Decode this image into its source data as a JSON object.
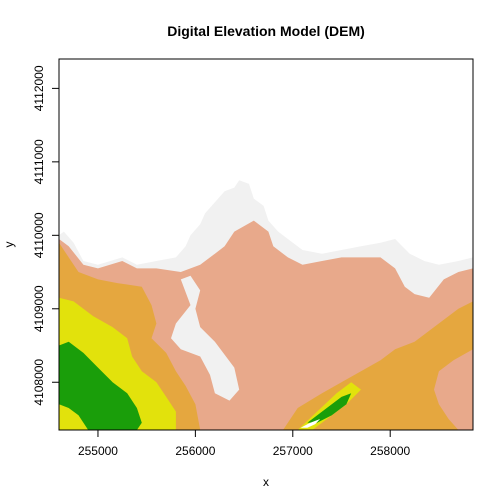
{
  "chart_data": {
    "type": "heatmap",
    "title": "Digital Elevation Model (DEM)",
    "xlabel": "x",
    "ylabel": "y",
    "xlim": [
      254600,
      258850
    ],
    "ylim": [
      4107350,
      4112400
    ],
    "x_ticks": [
      255000,
      256000,
      257000,
      258000
    ],
    "x_tick_labels": [
      "255000",
      "256000",
      "257000",
      "258000"
    ],
    "y_ticks": [
      4108000,
      4109000,
      4110000,
      4111000,
      4112000
    ],
    "y_tick_labels": [
      "4108000",
      "4109000",
      "4110000",
      "4111000",
      "4112000"
    ],
    "legend": "none",
    "grid": false,
    "colors": {
      "no_data": "#ffffff",
      "class_1": "#1a9e0a",
      "class_2": "#e2e20c",
      "class_3": "#e5a73f",
      "class_4": "#e8a98b",
      "class_5": "#f1f1f1",
      "frame": "#000000"
    },
    "regions": [
      {
        "name": "class_5",
        "polygon": [
          [
            254600,
            4110000
          ],
          [
            254650,
            4110050
          ],
          [
            254750,
            4109900
          ],
          [
            254850,
            4109650
          ],
          [
            255000,
            4109600
          ],
          [
            255250,
            4109700
          ],
          [
            255400,
            4109600
          ],
          [
            255600,
            4109650
          ],
          [
            255800,
            4109700
          ],
          [
            255900,
            4109850
          ],
          [
            255950,
            4110000
          ],
          [
            256050,
            4110150
          ],
          [
            256100,
            4110300
          ],
          [
            256200,
            4110450
          ],
          [
            256300,
            4110600
          ],
          [
            256400,
            4110650
          ],
          [
            256450,
            4110750
          ],
          [
            256550,
            4110700
          ],
          [
            256600,
            4110500
          ],
          [
            256700,
            4110400
          ],
          [
            256750,
            4110200
          ],
          [
            256850,
            4110050
          ],
          [
            256950,
            4109950
          ],
          [
            257100,
            4109800
          ],
          [
            257300,
            4109750
          ],
          [
            257500,
            4109800
          ],
          [
            257700,
            4109850
          ],
          [
            257900,
            4109900
          ],
          [
            258050,
            4109950
          ],
          [
            258200,
            4109750
          ],
          [
            258350,
            4109650
          ],
          [
            258500,
            4109600
          ],
          [
            258700,
            4109650
          ],
          [
            258850,
            4109700
          ],
          [
            258850,
            4107350
          ],
          [
            254600,
            4107350
          ]
        ]
      },
      {
        "name": "class_4",
        "polygon": [
          [
            254600,
            4109950
          ],
          [
            254700,
            4109850
          ],
          [
            254850,
            4109600
          ],
          [
            255000,
            4109550
          ],
          [
            255250,
            4109650
          ],
          [
            255400,
            4109550
          ],
          [
            255600,
            4109550
          ],
          [
            255850,
            4109500
          ],
          [
            256050,
            4109600
          ],
          [
            256200,
            4109750
          ],
          [
            256300,
            4109850
          ],
          [
            256400,
            4110050
          ],
          [
            256600,
            4110200
          ],
          [
            256750,
            4110050
          ],
          [
            256800,
            4109850
          ],
          [
            256950,
            4109700
          ],
          [
            257100,
            4109600
          ],
          [
            257300,
            4109650
          ],
          [
            257500,
            4109700
          ],
          [
            257700,
            4109700
          ],
          [
            257900,
            4109700
          ],
          [
            258050,
            4109550
          ],
          [
            258150,
            4109300
          ],
          [
            258250,
            4109200
          ],
          [
            258400,
            4109150
          ],
          [
            258550,
            4109400
          ],
          [
            258700,
            4109500
          ],
          [
            258850,
            4109550
          ],
          [
            258850,
            4107350
          ],
          [
            254600,
            4107350
          ]
        ]
      },
      {
        "name": "class_5",
        "polygon": [
          [
            255850,
            4109400
          ],
          [
            255950,
            4109050
          ],
          [
            255800,
            4108800
          ],
          [
            255750,
            4108600
          ],
          [
            255850,
            4108450
          ],
          [
            256050,
            4108350
          ],
          [
            256150,
            4108100
          ],
          [
            256200,
            4107850
          ],
          [
            256350,
            4107750
          ],
          [
            256450,
            4107900
          ],
          [
            256400,
            4108200
          ],
          [
            256200,
            4108550
          ],
          [
            256050,
            4108750
          ],
          [
            256000,
            4109000
          ],
          [
            256050,
            4109250
          ],
          [
            255950,
            4109450
          ]
        ]
      },
      {
        "name": "class_3",
        "polygon": [
          [
            254600,
            4109900
          ],
          [
            254700,
            4109700
          ],
          [
            254800,
            4109500
          ],
          [
            255000,
            4109400
          ],
          [
            255200,
            4109350
          ],
          [
            255450,
            4109300
          ],
          [
            255550,
            4109050
          ],
          [
            255600,
            4108800
          ],
          [
            255550,
            4108600
          ],
          [
            255700,
            4108400
          ],
          [
            255800,
            4108150
          ],
          [
            255900,
            4107950
          ],
          [
            256000,
            4107700
          ],
          [
            256050,
            4107350
          ],
          [
            254600,
            4107350
          ]
        ]
      },
      {
        "name": "class_3",
        "polygon": [
          [
            256900,
            4107350
          ],
          [
            257050,
            4107650
          ],
          [
            257300,
            4107850
          ],
          [
            257500,
            4108000
          ],
          [
            257700,
            4108150
          ],
          [
            257900,
            4108300
          ],
          [
            258050,
            4108450
          ],
          [
            258250,
            4108550
          ],
          [
            258400,
            4108700
          ],
          [
            258550,
            4108850
          ],
          [
            258700,
            4109000
          ],
          [
            258850,
            4109100
          ],
          [
            258850,
            4108450
          ],
          [
            258650,
            4108300
          ],
          [
            258500,
            4108150
          ],
          [
            258450,
            4107900
          ],
          [
            258500,
            4107700
          ],
          [
            258600,
            4107500
          ],
          [
            258700,
            4107350
          ]
        ]
      },
      {
        "name": "class_2",
        "polygon": [
          [
            254600,
            4109150
          ],
          [
            254750,
            4109100
          ],
          [
            254950,
            4108900
          ],
          [
            255150,
            4108750
          ],
          [
            255300,
            4108600
          ],
          [
            255350,
            4108350
          ],
          [
            255450,
            4108150
          ],
          [
            255600,
            4108000
          ],
          [
            255700,
            4107800
          ],
          [
            255800,
            4107600
          ],
          [
            255800,
            4107350
          ],
          [
            254600,
            4107350
          ]
        ]
      },
      {
        "name": "class_1",
        "polygon": [
          [
            254600,
            4108500
          ],
          [
            254700,
            4108550
          ],
          [
            254850,
            4108400
          ],
          [
            255000,
            4108200
          ],
          [
            255150,
            4108000
          ],
          [
            255300,
            4107850
          ],
          [
            255400,
            4107650
          ],
          [
            255450,
            4107450
          ],
          [
            255400,
            4107350
          ],
          [
            254900,
            4107350
          ],
          [
            254800,
            4107550
          ],
          [
            254700,
            4107650
          ],
          [
            254600,
            4107700
          ]
        ]
      },
      {
        "name": "class_2",
        "polygon": [
          [
            257050,
            4107350
          ],
          [
            257250,
            4107600
          ],
          [
            257450,
            4107850
          ],
          [
            257600,
            4108000
          ],
          [
            257700,
            4107900
          ],
          [
            257550,
            4107700
          ],
          [
            257350,
            4107500
          ],
          [
            257200,
            4107350
          ]
        ]
      },
      {
        "name": "class_1",
        "polygon": [
          [
            257150,
            4107450
          ],
          [
            257300,
            4107600
          ],
          [
            257500,
            4107800
          ],
          [
            257600,
            4107850
          ],
          [
            257550,
            4107700
          ],
          [
            257400,
            4107550
          ],
          [
            257250,
            4107450
          ]
        ]
      },
      {
        "name": "no_data",
        "polygon": [
          [
            257080,
            4107380
          ],
          [
            257180,
            4107450
          ],
          [
            257280,
            4107500
          ],
          [
            257230,
            4107430
          ],
          [
            257150,
            4107380
          ]
        ]
      }
    ]
  }
}
